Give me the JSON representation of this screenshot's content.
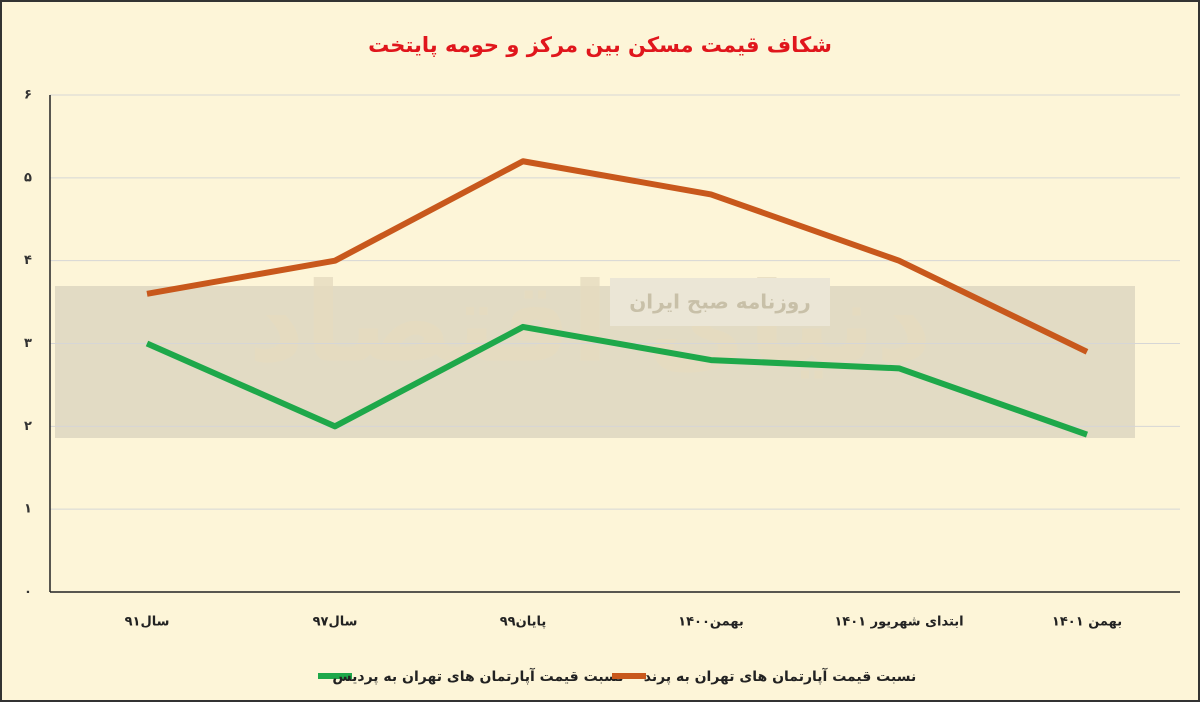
{
  "chart_data": {
    "type": "line",
    "title": "شکاف قیمت مسکن بین مرکز و حومه پایتخت",
    "watermark": [
      "دنیای اقتصاد",
      "روزنامه صبح ایران"
    ],
    "categories": [
      "سال۹۱",
      "سال۹۷",
      "پایان۹۹",
      "بهمن۱۴۰۰",
      "ابتدای شهریور ۱۴۰۱",
      "بهمن ۱۴۰۱"
    ],
    "series": [
      {
        "name": "نسبت قیمت آپارتمان های تهران به پردیس",
        "color": "#1ea84a",
        "values": [
          3.0,
          2.0,
          3.2,
          2.8,
          2.7,
          1.9
        ]
      },
      {
        "name": "نسبت قیمت آپارتمان های تهران به پرند",
        "color": "#c8581c",
        "values": [
          3.6,
          4.0,
          5.2,
          4.8,
          4.0,
          2.9
        ]
      }
    ],
    "ylim": [
      0,
      6
    ],
    "yticks": [
      {
        "value": 0,
        "label": "۰"
      },
      {
        "value": 1,
        "label": "۱"
      },
      {
        "value": 2,
        "label": "۲"
      },
      {
        "value": 3,
        "label": "۳"
      },
      {
        "value": 4,
        "label": "۴"
      },
      {
        "value": 5,
        "label": "۵"
      },
      {
        "value": 6,
        "label": "۶"
      }
    ],
    "grid": true
  }
}
